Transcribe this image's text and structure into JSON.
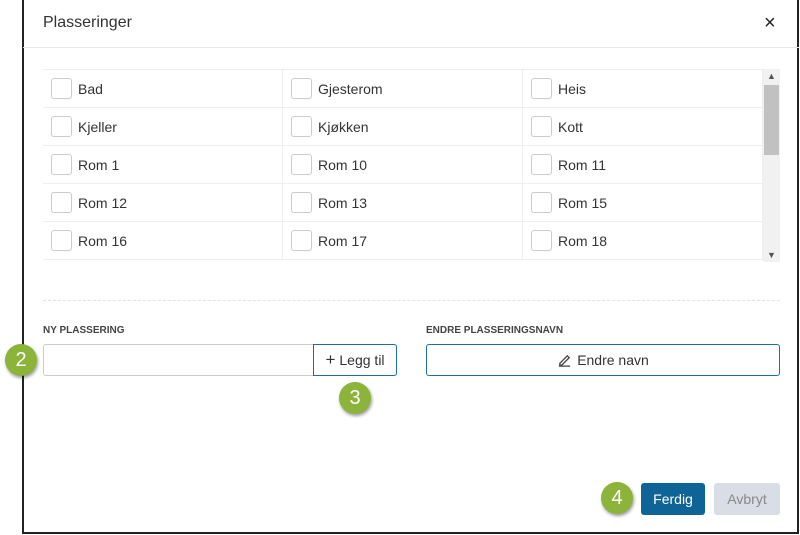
{
  "dialog": {
    "title": "Plasseringer",
    "close_icon": "×"
  },
  "locations": [
    [
      "Bad",
      "Gjesterom",
      "Heis"
    ],
    [
      "Kjeller",
      "Kjøkken",
      "Kott"
    ],
    [
      "Rom 1",
      "Rom 10",
      "Rom 11"
    ],
    [
      "Rom 12",
      "Rom 13",
      "Rom 15"
    ],
    [
      "Rom 16",
      "Rom 17",
      "Rom 18"
    ]
  ],
  "new_location": {
    "label": "NY PLASSERING",
    "value": "",
    "add_label": "Legg til",
    "add_icon": "+"
  },
  "rename": {
    "label": "ENDRE PLASSERINGSNAVN",
    "button_label": "Endre navn"
  },
  "footer": {
    "done_label": "Ferdig",
    "cancel_label": "Avbryt"
  },
  "callouts": [
    "2",
    "3",
    "4"
  ],
  "colors": {
    "primary": "#0e6496",
    "callout": "#8cb43a",
    "disabled": "#d8dde6"
  }
}
